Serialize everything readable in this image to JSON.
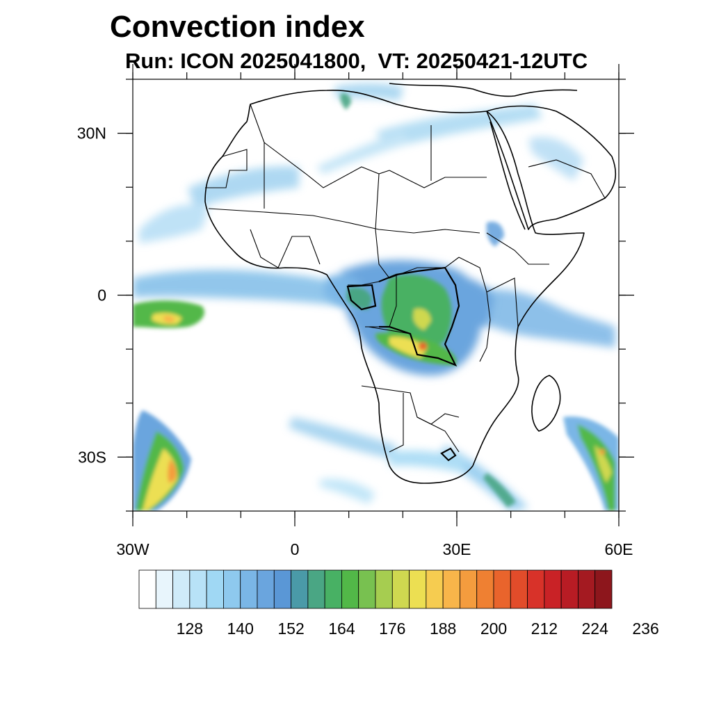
{
  "header": {
    "title": "Convection index",
    "subtitle": "Run: ICON 2025041800,  VT: 20250421-12UTC"
  },
  "map": {
    "lon_range": [
      -30,
      60
    ],
    "lat_range": [
      -40,
      40
    ],
    "lon_ticks": [
      {
        "value": -30,
        "label": "30W"
      },
      {
        "value": 0,
        "label": "0"
      },
      {
        "value": 30,
        "label": "30E"
      },
      {
        "value": 60,
        "label": "60E"
      }
    ],
    "lat_ticks": [
      {
        "value": 30,
        "label": "30N"
      },
      {
        "value": 0,
        "label": "0"
      },
      {
        "value": -30,
        "label": "30S"
      }
    ]
  },
  "colorbar": {
    "colors": [
      "#ffffff",
      "#e8f5fc",
      "#cfebf9",
      "#b8e2f7",
      "#a0d8f4",
      "#8ec9ee",
      "#7ab6e6",
      "#6aa5de",
      "#5a97d6",
      "#4a9aa8",
      "#4aa684",
      "#48b164",
      "#52b848",
      "#78c150",
      "#a6cd50",
      "#cfd850",
      "#ecdf52",
      "#f6cc50",
      "#f8b54a",
      "#f49c3e",
      "#ef8032",
      "#e9642c",
      "#e24c2a",
      "#d83229",
      "#c92226",
      "#b81c24",
      "#a41a21",
      "#8d161c"
    ],
    "labels": [
      "128",
      "140",
      "152",
      "164",
      "176",
      "188",
      "200",
      "212",
      "224",
      "236"
    ]
  }
}
